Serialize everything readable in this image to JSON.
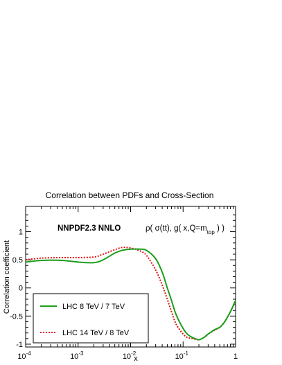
{
  "chart_data": {
    "type": "line",
    "title": "Correlation between PDFs and Cross-Section",
    "ylabel": "Correlation coefficient",
    "xlabel": "x",
    "x_scale": "log",
    "xlim": [
      0.0001,
      1
    ],
    "ylim": [
      -1.05,
      1.45
    ],
    "x_tick_base": "10",
    "x_tick_exponents": [
      "-4",
      "-3",
      "-2",
      "-1"
    ],
    "x_tick_last": "1",
    "y_tick_labels": [
      "1",
      "0.5",
      "0",
      "-0.5",
      "-1"
    ],
    "y_ticks": [
      1,
      0.5,
      0,
      -0.5,
      -1
    ],
    "annotation_left": "NNPDF2.3 NNLO",
    "annotation_right": {
      "main": "ρ( σ(tt), g( x,Q=m",
      "sub": "top",
      "end": " ) )"
    },
    "legend_position": "bottom-left",
    "grid": false,
    "series": [
      {
        "name": "LHC 8 TeV / 7 TeV",
        "color": "#1a9e1a",
        "style": "solid",
        "x": [
          0.0001,
          0.0002,
          0.0005,
          0.001,
          0.002,
          0.003,
          0.005,
          0.007,
          0.01,
          0.015,
          0.02,
          0.03,
          0.04,
          0.05,
          0.06,
          0.07,
          0.08,
          0.1,
          0.12,
          0.15,
          0.2,
          0.25,
          0.3,
          0.4,
          0.5,
          0.6,
          0.7,
          0.8,
          0.9,
          1.0
        ],
        "y": [
          0.46,
          0.49,
          0.49,
          0.46,
          0.45,
          0.5,
          0.62,
          0.67,
          0.69,
          0.69,
          0.67,
          0.52,
          0.28,
          0.0,
          -0.22,
          -0.42,
          -0.55,
          -0.72,
          -0.82,
          -0.88,
          -0.92,
          -0.88,
          -0.82,
          -0.74,
          -0.7,
          -0.62,
          -0.52,
          -0.42,
          -0.32,
          -0.22
        ]
      },
      {
        "name": "LHC 14 TeV / 8 TeV",
        "color": "#e01010",
        "style": "dotted",
        "x": [
          0.0001,
          0.0002,
          0.0005,
          0.001,
          0.002,
          0.003,
          0.005,
          0.007,
          0.01,
          0.015,
          0.02,
          0.03,
          0.04,
          0.05,
          0.06,
          0.07,
          0.08,
          0.1,
          0.12,
          0.15,
          0.2,
          0.25,
          0.3,
          0.4,
          0.5,
          0.6,
          0.7,
          0.8,
          0.9,
          1.0
        ],
        "y": [
          0.5,
          0.53,
          0.54,
          0.54,
          0.55,
          0.6,
          0.68,
          0.72,
          0.71,
          0.66,
          0.58,
          0.32,
          0.05,
          -0.2,
          -0.42,
          -0.6,
          -0.7,
          -0.82,
          -0.88,
          -0.9,
          -0.92,
          -0.88,
          -0.82,
          -0.75,
          -0.7,
          -0.62,
          -0.52,
          -0.42,
          -0.32,
          -0.22
        ]
      }
    ]
  }
}
